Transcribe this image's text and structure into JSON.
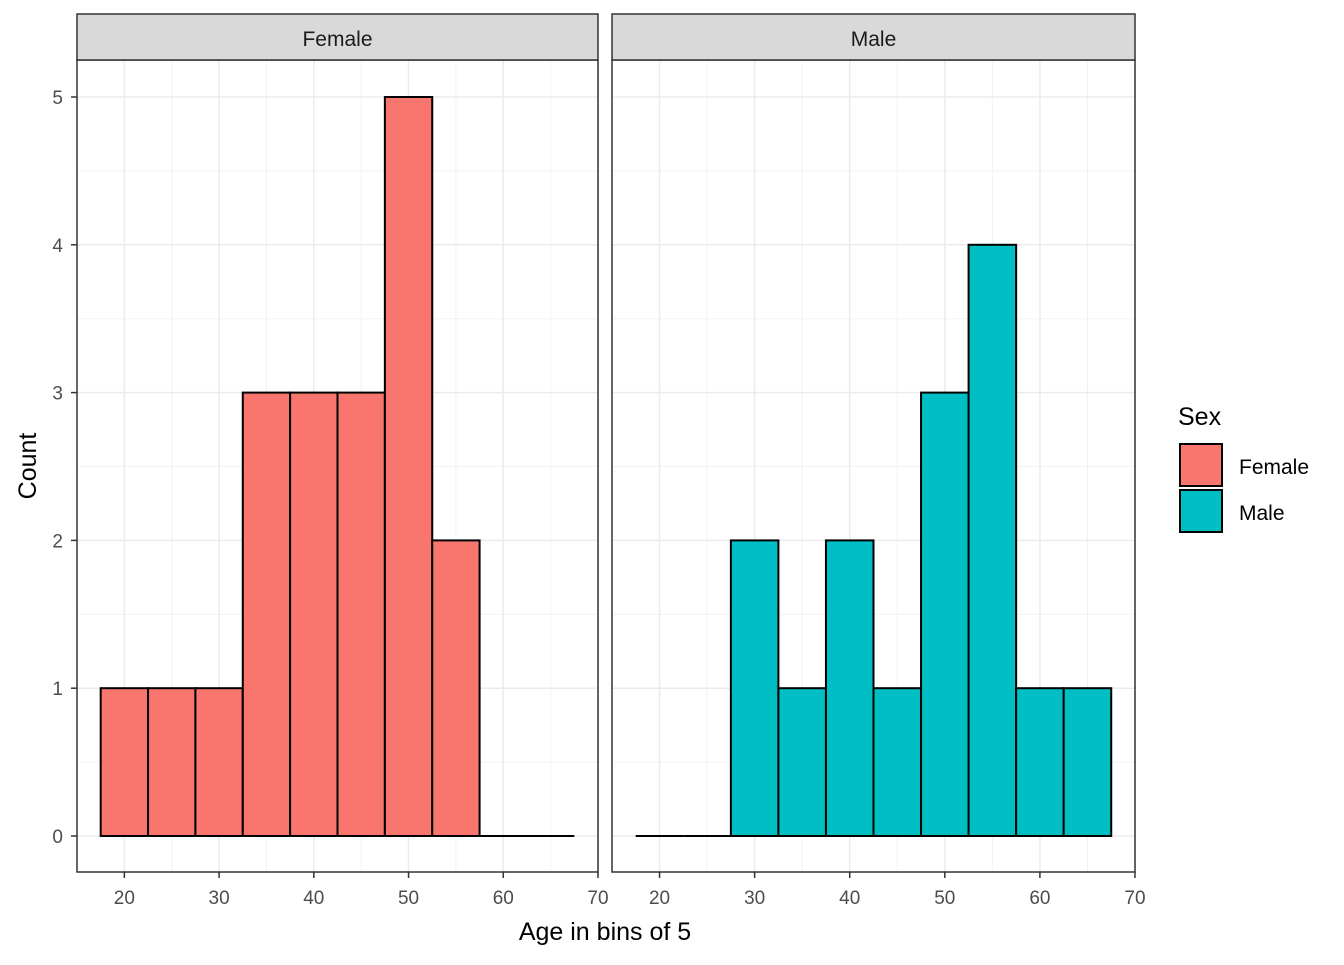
{
  "chart_data": {
    "type": "bar",
    "subtype": "faceted-histogram",
    "xlabel": "Age in bins of 5",
    "ylabel": "Count",
    "xlim": [
      15,
      70
    ],
    "ylim": [
      0,
      5
    ],
    "x_ticks": [
      20,
      30,
      40,
      50,
      60,
      70
    ],
    "y_ticks": [
      0,
      1,
      2,
      3,
      4,
      5
    ],
    "bin_width": 5,
    "bin_centers": [
      20,
      25,
      30,
      35,
      40,
      45,
      50,
      55,
      60,
      65
    ],
    "grid": true,
    "legend": {
      "title": "Sex",
      "position": "right",
      "entries": [
        "Female",
        "Male"
      ]
    },
    "facets": [
      {
        "label": "Female",
        "color": "#F8766D",
        "counts": [
          1,
          1,
          1,
          3,
          3,
          3,
          5,
          2,
          0,
          0
        ]
      },
      {
        "label": "Male",
        "color": "#00BFC4",
        "counts": [
          0,
          0,
          2,
          1,
          2,
          1,
          3,
          4,
          1,
          1
        ]
      }
    ]
  }
}
